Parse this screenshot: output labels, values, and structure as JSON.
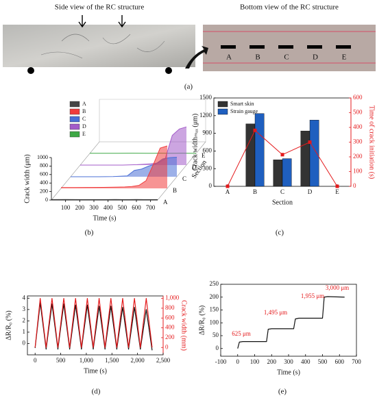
{
  "photos": {
    "side_title": "Side view of the RC structure",
    "bottom_title": "Bottom view of the RC structure",
    "labels": [
      "A",
      "B",
      "C",
      "D",
      "E"
    ],
    "panel_label": "(a)"
  },
  "chart_data": [
    {
      "type": "waterfall3d",
      "panel_label": "(b)",
      "xlabel": "Time (s)",
      "ylabel": "Crack width (μm)",
      "zlabel": "Section",
      "x": [
        0,
        100,
        200,
        300,
        400,
        450,
        500,
        550,
        600,
        650,
        700,
        750
      ],
      "series": [
        {
          "name": "A",
          "color": "#444444",
          "values": [
            10,
            12,
            10,
            11,
            10,
            12,
            10,
            11,
            12,
            10,
            11,
            10
          ]
        },
        {
          "name": "B",
          "color": "#f03c3c",
          "values": [
            20,
            20,
            22,
            25,
            30,
            35,
            45,
            70,
            180,
            550,
            950,
            1000
          ]
        },
        {
          "name": "C",
          "color": "#4a6fd6",
          "values": [
            0,
            0,
            0,
            5,
            20,
            150,
            180,
            250,
            300,
            420,
            450,
            460
          ]
        },
        {
          "name": "D",
          "color": "#a35bc9",
          "values": [
            0,
            0,
            0,
            0,
            10,
            20,
            30,
            50,
            150,
            700,
            850,
            900
          ]
        },
        {
          "name": "E",
          "color": "#3ea845",
          "values": [
            5,
            5,
            5,
            6,
            5,
            5,
            6,
            5,
            5,
            6,
            5,
            5
          ]
        }
      ],
      "xlim": [
        0,
        750
      ],
      "xticks": [
        100,
        200,
        300,
        400,
        500,
        600,
        700
      ],
      "ylim": [
        0,
        1000
      ],
      "yticks": [
        0,
        200,
        400,
        600,
        800,
        1000
      ]
    },
    {
      "type": "bar",
      "panel_label": "(c)",
      "xlabel": "Section",
      "ylabel": "Crack widthₘₐₓ (μm)",
      "y2label": "Time of crack initiation (s)",
      "categories": [
        "A",
        "B",
        "C",
        "D",
        "E"
      ],
      "series": [
        {
          "name": "Smart skin",
          "color": "#333333",
          "values": [
            0,
            1060,
            450,
            940,
            0
          ]
        },
        {
          "name": "Strain gauge",
          "color": "#1f5fbf",
          "values": [
            0,
            1235,
            470,
            1125,
            0
          ]
        },
        {
          "color": "#e41a1c",
          "axis": "y2",
          "kind": "line",
          "values": [
            0,
            380,
            215,
            300,
            0
          ]
        }
      ],
      "ylim": [
        0,
        1500
      ],
      "yticks": [
        0,
        300,
        600,
        900,
        1200,
        1500
      ],
      "y2lim": [
        0,
        600
      ],
      "y2ticks": [
        0,
        100,
        200,
        300,
        400,
        500,
        600
      ],
      "y2color": "#e41a1c"
    },
    {
      "type": "line",
      "panel_label": "(d)",
      "xlabel": "Time (s)",
      "ylabel": "ΔR/R₀ (%)",
      "y2label": "Crack width (mm)",
      "x": [
        0,
        100,
        215,
        330,
        445,
        560,
        675,
        790,
        905,
        1020,
        1135,
        1250,
        1365,
        1480,
        1595,
        1710,
        1825,
        1940,
        2055,
        2170,
        2285
      ],
      "series": [
        {
          "color": "#111111",
          "values": [
            -0.4,
            3.6,
            -0.5,
            3.5,
            -0.5,
            3.5,
            -0.5,
            3.4,
            -0.5,
            3.4,
            -0.5,
            3.3,
            -0.5,
            3.3,
            -0.5,
            3.2,
            -0.5,
            3.2,
            -0.5,
            3.0,
            -0.6
          ]
        },
        {
          "color": "#e41a1c",
          "axis": "y2",
          "values": [
            0,
            1000,
            0,
            1000,
            0,
            1000,
            0,
            1000,
            0,
            1000,
            0,
            1000,
            0,
            1000,
            0,
            1000,
            0,
            1000,
            0,
            1000,
            0
          ]
        }
      ],
      "xlim": [
        -150,
        2500
      ],
      "xticks": [
        0,
        500,
        {
          "value": 1000,
          "label": "1,000"
        },
        {
          "value": 1500,
          "label": "1,500"
        },
        {
          "value": 2000,
          "label": "2,000"
        },
        {
          "value": 2500,
          "label": "2,500"
        }
      ],
      "ylim": [
        -1,
        4.2
      ],
      "yticks": [
        0,
        1,
        2,
        3,
        4
      ],
      "y2lim": [
        -150,
        1050
      ],
      "y2ticks": [
        0,
        200,
        400,
        600,
        800,
        {
          "value": 1000,
          "label": "1,000"
        }
      ],
      "y2color": "#e41a1c"
    },
    {
      "type": "line",
      "panel_label": "(e)",
      "xlabel": "Time (s)",
      "ylabel": "ΔR/R₀ (%)",
      "x": [
        0,
        10,
        30,
        170,
        180,
        200,
        330,
        340,
        360,
        500,
        510,
        530,
        630
      ],
      "series": [
        {
          "color": "#111111",
          "values": [
            0,
            25,
            27,
            27,
            75,
            77,
            77,
            115,
            118,
            118,
            200,
            202,
            200
          ]
        }
      ],
      "annotations": [
        "625 μm",
        "1,495 μm",
        "1,955 μm",
        "3,000 μm"
      ],
      "annotation_color": "#e41a1c",
      "xlim": [
        -100,
        700
      ],
      "xticks": [
        -100,
        0,
        100,
        200,
        300,
        400,
        500,
        600,
        700
      ],
      "ylim": [
        -30,
        250
      ],
      "yticks": [
        0,
        50,
        100,
        150,
        200,
        250
      ]
    }
  ]
}
